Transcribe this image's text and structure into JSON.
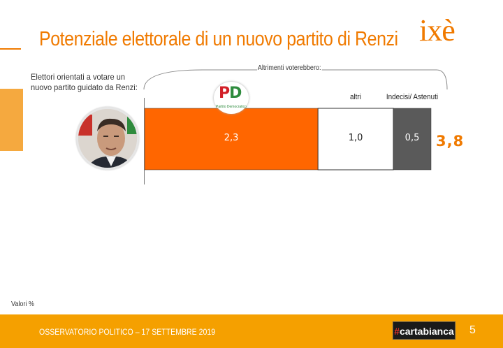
{
  "header": {
    "title": "Potenziale elettorale di un nuovo partito di Renzi",
    "logo_text": "ixè"
  },
  "subtitle": "Elettori orientati a votare un nuovo partito guidato da Renzi:",
  "brace_label": "Altrimenti voterebbero:",
  "party_logo": {
    "letters_p": "P",
    "letters_d": "D",
    "caption": "Partito Democratico"
  },
  "chart_data": {
    "type": "bar",
    "orientation": "horizontal-stacked",
    "categories": [
      "Partito Democratico",
      "altri",
      "Indecisi/ Astenuti"
    ],
    "category_labels": [
      "",
      "altri",
      "Indecisi/ Astenuti"
    ],
    "values": [
      2.3,
      1.0,
      0.5
    ],
    "value_labels": [
      "2,3",
      "1,0",
      "0,5"
    ],
    "total": 3.8,
    "total_label": "3,8",
    "unit": "%",
    "colors": [
      "#ff6600",
      "#ffffff",
      "#5a5a5a"
    ],
    "label_colors": [
      "#ffffff",
      "#222222",
      "#ffffff"
    ]
  },
  "note": "Valori %",
  "footer": {
    "text": "OSSERVATORIO POLITICO – 17 SETTEMBRE 2019",
    "brand_hash": "#",
    "brand_name": "cartabianca",
    "page_number": "5"
  },
  "colors": {
    "accent": "#f07a00",
    "footer_bg": "#f5a000"
  }
}
